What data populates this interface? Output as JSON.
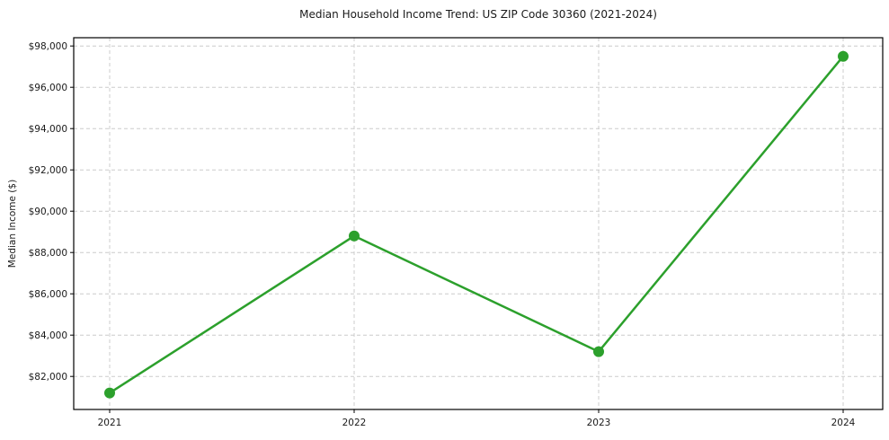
{
  "figure": {
    "background": "#ffffff"
  },
  "chart_data": {
    "type": "line",
    "title": "Median Household Income Trend: US ZIP Code 30360 (2021-2024)",
    "xlabel": "",
    "ylabel": "Median Income ($)",
    "categories": [
      "2021",
      "2022",
      "2023",
      "2024"
    ],
    "values": [
      81200,
      88800,
      83200,
      97500
    ],
    "yticks": [
      82000,
      84000,
      86000,
      88000,
      90000,
      92000,
      94000,
      96000,
      98000
    ],
    "ytick_labels": [
      "$82,000",
      "$84,000",
      "$86,000",
      "$88,000",
      "$90,000",
      "$92,000",
      "$94,000",
      "$96,000",
      "$98,000"
    ],
    "ylim": [
      80400,
      98400
    ],
    "grid": "on",
    "grid_style": "dashed",
    "legend": "none",
    "line_color": "#2ca02c",
    "marker": "circle",
    "marker_color": "#2ca02c",
    "grid_color": "#cccccc",
    "axis_color": "#000000",
    "text_color": "#1a1a1a"
  }
}
